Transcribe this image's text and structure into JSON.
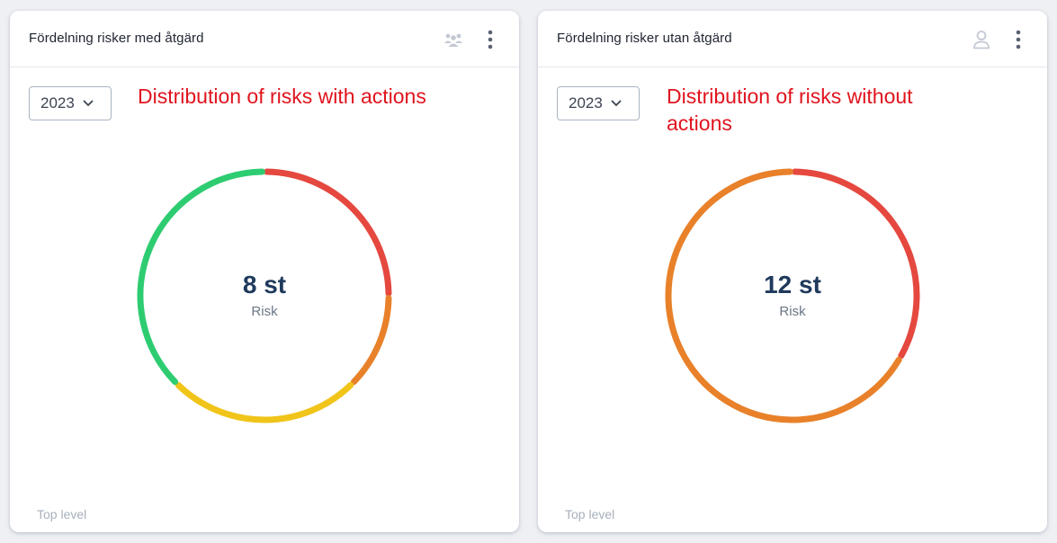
{
  "cards": [
    {
      "title": "Fördelning risker med åtgärd",
      "header_icon": "people-icon",
      "year": "2023",
      "annotation": "Distribution of risks with actions",
      "total_value": "8 st",
      "total_label": "Risk",
      "footer": "Top level",
      "chart_data": {
        "type": "pie",
        "segments": [
          {
            "value": 2,
            "color": "#e5483f"
          },
          {
            "value": 1,
            "color": "#e8812a"
          },
          {
            "value": 2,
            "color": "#f0c419"
          },
          {
            "value": 3,
            "color": "#2ecc71"
          }
        ]
      }
    },
    {
      "title": "Fördelning risker utan åtgärd",
      "header_icon": "person-icon",
      "year": "2023",
      "annotation": "Distribution of risks without actions",
      "total_value": "12 st",
      "total_label": "Risk",
      "footer": "Top level",
      "chart_data": {
        "type": "pie",
        "segments": [
          {
            "value": 4,
            "color": "#e5483f"
          },
          {
            "value": 8,
            "color": "#e8812a"
          }
        ]
      }
    }
  ]
}
